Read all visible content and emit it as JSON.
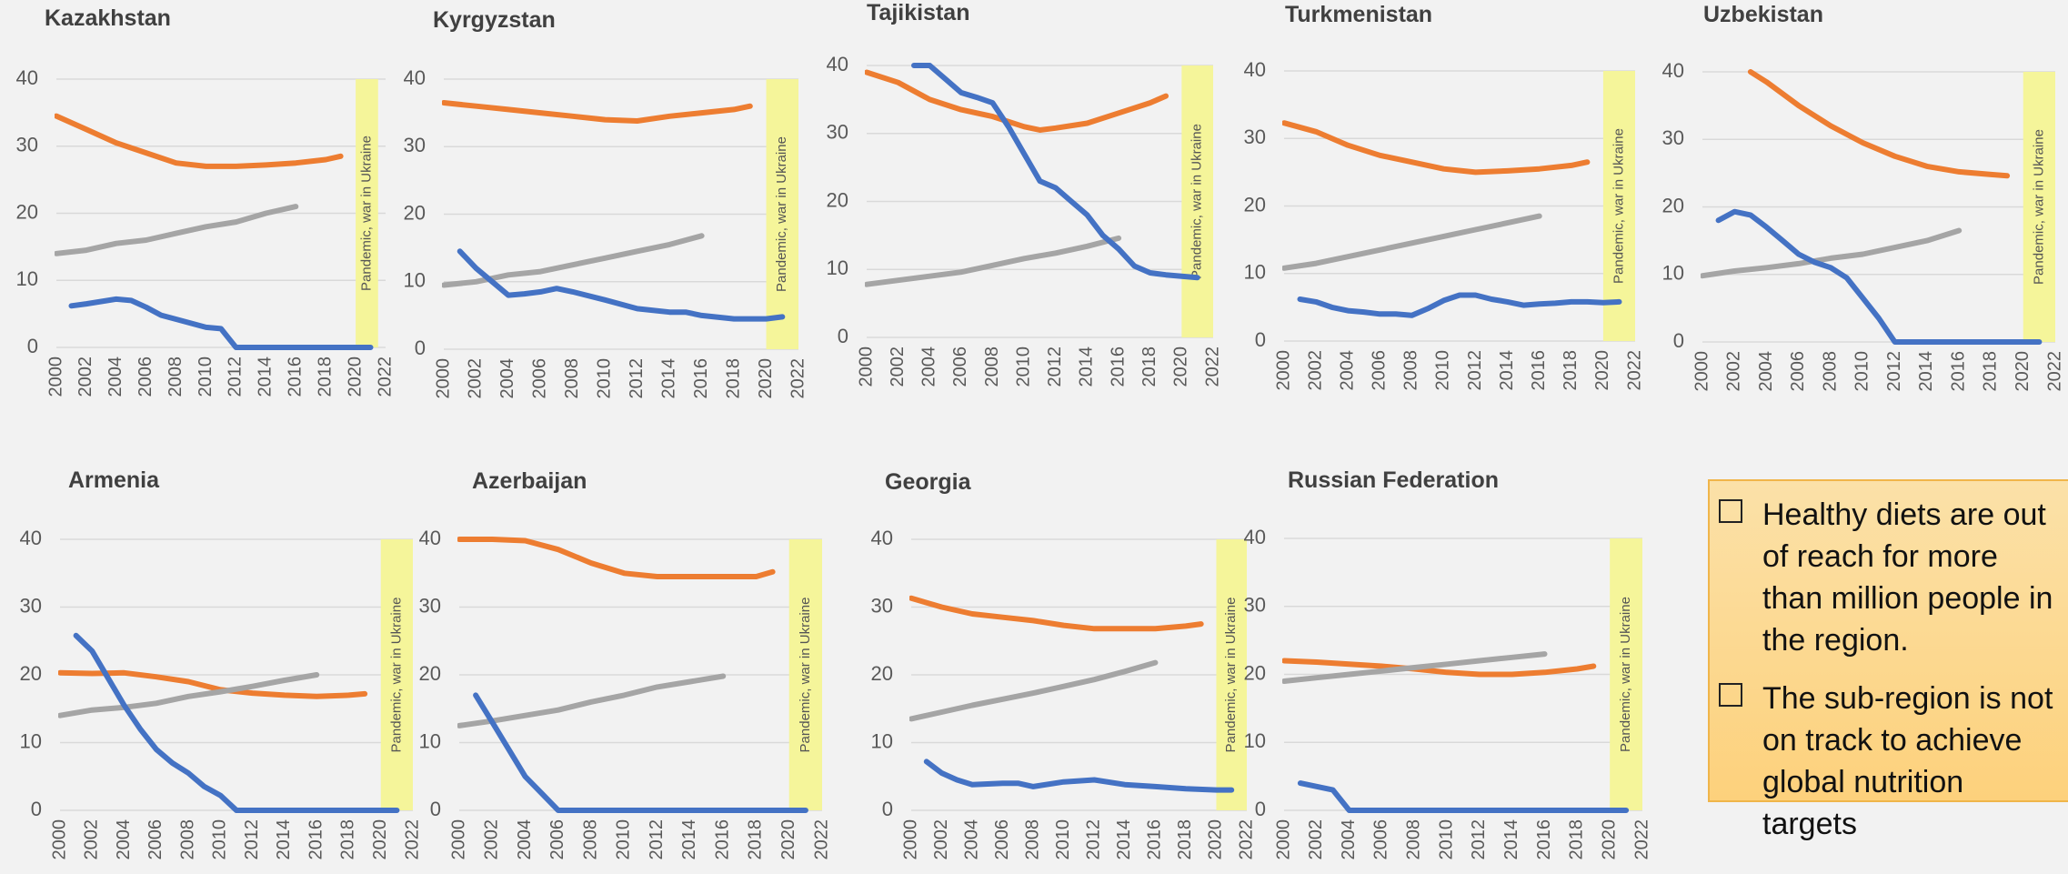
{
  "colors": {
    "blue": "#4472c4",
    "orange": "#ed7d31",
    "gray": "#a5a5a5",
    "band": "#f5f59a",
    "grid": "#d9d9d9"
  },
  "band_label": "Pandemic, war in Ukraine",
  "info_box": {
    "items": [
      "Healthy diets are out of reach for more than million people in the region.",
      "The sub-region is not on track to achieve global nutrition targets"
    ]
  },
  "chart_data": [
    {
      "type": "line",
      "title": "Kazakhstan",
      "ylim": [
        0,
        40
      ],
      "yticks": [
        "0",
        "10",
        "20",
        "30",
        "40"
      ],
      "xticks": [
        "2000",
        "2002",
        "2004",
        "2006",
        "2008",
        "2010",
        "2012",
        "2014",
        "2016",
        "2018",
        "2020",
        "2022"
      ],
      "band": [
        2020,
        2021.5
      ],
      "band_label": "Pandemic, war in Ukraine",
      "series": [
        {
          "color": "orange",
          "x": [
            2000,
            2002,
            2004,
            2006,
            2008,
            2010,
            2012,
            2014,
            2016,
            2018,
            2019
          ],
          "values": [
            34.5,
            32.5,
            30.5,
            29,
            27.5,
            27,
            27,
            27.2,
            27.5,
            28,
            28.5
          ]
        },
        {
          "color": "gray",
          "x": [
            2000,
            2002,
            2004,
            2006,
            2008,
            2010,
            2012,
            2014,
            2016
          ],
          "values": [
            14,
            14.5,
            15.5,
            16,
            17,
            18,
            18.7,
            20,
            21
          ]
        },
        {
          "color": "blue",
          "x": [
            2001,
            2002,
            2004,
            2005,
            2006,
            2007,
            2008,
            2010,
            2011,
            2012,
            2014,
            2016,
            2018,
            2020,
            2021
          ],
          "values": [
            6.2,
            6.5,
            7.2,
            7,
            6,
            4.8,
            4.2,
            3,
            2.8,
            0,
            0,
            0,
            0,
            0,
            0
          ]
        }
      ]
    },
    {
      "type": "line",
      "title": "Kyrgyzstan",
      "ylim": [
        0,
        40
      ],
      "yticks": [
        "0",
        "10",
        "20",
        "30",
        "40"
      ],
      "xticks": [
        "2000",
        "2002",
        "2004",
        "2006",
        "2008",
        "2010",
        "2012",
        "2014",
        "2016",
        "2018",
        "2020",
        "2022"
      ],
      "band": [
        2020,
        2022
      ],
      "band_label": "Pandemic, war in Ukraine",
      "series": [
        {
          "color": "orange",
          "x": [
            2000,
            2002,
            2004,
            2006,
            2008,
            2010,
            2012,
            2014,
            2016,
            2018,
            2019
          ],
          "values": [
            36.5,
            36,
            35.5,
            35,
            34.5,
            34,
            33.8,
            34.5,
            35,
            35.5,
            36
          ]
        },
        {
          "color": "gray",
          "x": [
            2000,
            2002,
            2004,
            2006,
            2008,
            2010,
            2012,
            2014,
            2016
          ],
          "values": [
            9.5,
            10,
            11,
            11.5,
            12.5,
            13.5,
            14.5,
            15.5,
            16.8
          ]
        },
        {
          "color": "blue",
          "x": [
            2001,
            2002,
            2004,
            2005,
            2006,
            2007,
            2008,
            2010,
            2012,
            2014,
            2015,
            2016,
            2018,
            2019,
            2020,
            2021
          ],
          "values": [
            14.5,
            12,
            8,
            8.2,
            8.5,
            9,
            8.5,
            7.3,
            6,
            5.5,
            5.5,
            5,
            4.5,
            4.5,
            4.5,
            4.8
          ]
        }
      ]
    },
    {
      "type": "line",
      "title": "Tajikistan",
      "ylim": [
        0,
        40
      ],
      "yticks": [
        "0",
        "10",
        "20",
        "30",
        "40"
      ],
      "xticks": [
        "2000",
        "2002",
        "2004",
        "2006",
        "2008",
        "2010",
        "2012",
        "2014",
        "2016",
        "2018",
        "2020",
        "2022"
      ],
      "band": [
        2020,
        2022
      ],
      "band_label": "Pandemic, war in Ukraine",
      "series": [
        {
          "color": "orange",
          "x": [
            2000,
            2002,
            2004,
            2006,
            2008,
            2010,
            2011,
            2012,
            2014,
            2016,
            2018,
            2019
          ],
          "values": [
            39,
            37.5,
            35,
            33.5,
            32.5,
            31,
            30.5,
            30.8,
            31.5,
            33,
            34.5,
            35.5
          ]
        },
        {
          "color": "gray",
          "x": [
            2000,
            2002,
            2004,
            2006,
            2008,
            2010,
            2012,
            2014,
            2016
          ],
          "values": [
            7.8,
            8.4,
            9,
            9.6,
            10.6,
            11.6,
            12.4,
            13.4,
            14.6
          ]
        },
        {
          "color": "blue",
          "x": [
            2003,
            2004,
            2005,
            2006,
            2007,
            2008,
            2009,
            2010,
            2011,
            2012,
            2013,
            2014,
            2015,
            2016,
            2017,
            2018,
            2019,
            2020,
            2021
          ],
          "values": [
            41,
            40,
            38,
            36,
            35.3,
            34.5,
            31,
            27,
            23,
            22,
            20,
            18,
            15,
            13,
            10.5,
            9.5,
            9.2,
            9,
            8.8
          ]
        }
      ]
    },
    {
      "type": "line",
      "title": "Turkmenistan",
      "ylim": [
        0,
        40
      ],
      "yticks": [
        "0",
        "10",
        "20",
        "30",
        "40"
      ],
      "xticks": [
        "2000",
        "2002",
        "2004",
        "2006",
        "2008",
        "2010",
        "2012",
        "2014",
        "2016",
        "2018",
        "2020",
        "2022"
      ],
      "band": [
        2020,
        2022
      ],
      "band_label": "Pandemic, war in Ukraine",
      "series": [
        {
          "color": "orange",
          "x": [
            2000,
            2002,
            2004,
            2006,
            2008,
            2010,
            2012,
            2014,
            2016,
            2018,
            2019
          ],
          "values": [
            32.3,
            31,
            29,
            27.5,
            26.5,
            25.5,
            25,
            25.2,
            25.5,
            26,
            26.5
          ]
        },
        {
          "color": "gray",
          "x": [
            2000,
            2002,
            2004,
            2006,
            2008,
            2010,
            2012,
            2014,
            2016
          ],
          "values": [
            10.8,
            11.5,
            12.5,
            13.5,
            14.5,
            15.5,
            16.5,
            17.5,
            18.5
          ]
        },
        {
          "color": "blue",
          "x": [
            2001,
            2002,
            2003,
            2004,
            2005,
            2006,
            2007,
            2008,
            2009,
            2010,
            2011,
            2012,
            2013,
            2014,
            2015,
            2016,
            2017,
            2018,
            2019,
            2020,
            2021
          ],
          "values": [
            6.2,
            5.8,
            5,
            4.5,
            4.3,
            4,
            4,
            3.8,
            4.8,
            6,
            6.8,
            6.8,
            6.2,
            5.8,
            5.3,
            5.5,
            5.6,
            5.8,
            5.8,
            5.7,
            5.8
          ]
        }
      ]
    },
    {
      "type": "line",
      "title": "Uzbekistan",
      "ylim": [
        0,
        40
      ],
      "yticks": [
        "0",
        "10",
        "20",
        "30",
        "40"
      ],
      "xticks": [
        "2000",
        "2002",
        "2004",
        "2006",
        "2008",
        "2010",
        "2012",
        "2014",
        "2016",
        "2018",
        "2020",
        "2022"
      ],
      "band": [
        2020,
        2022
      ],
      "band_label": "Pandemic, war in Ukraine",
      "series": [
        {
          "color": "orange",
          "x": [
            2003,
            2004,
            2006,
            2008,
            2010,
            2012,
            2014,
            2016,
            2018,
            2019
          ],
          "values": [
            40,
            38.5,
            35,
            32,
            29.5,
            27.5,
            26,
            25.2,
            24.8,
            24.6
          ]
        },
        {
          "color": "gray",
          "x": [
            2000,
            2002,
            2004,
            2006,
            2008,
            2010,
            2012,
            2014,
            2016
          ],
          "values": [
            9.8,
            10.5,
            11,
            11.6,
            12.4,
            13,
            14,
            15,
            16.5
          ]
        },
        {
          "color": "blue",
          "x": [
            2001,
            2002,
            2003,
            2004,
            2005,
            2006,
            2007,
            2008,
            2009,
            2010,
            2011,
            2012,
            2014,
            2016,
            2018,
            2020,
            2021
          ],
          "values": [
            18,
            19.3,
            18.8,
            17,
            15,
            13,
            11.8,
            11,
            9.5,
            6.5,
            3.5,
            0,
            0,
            0,
            0,
            0,
            0
          ]
        }
      ]
    },
    {
      "type": "line",
      "title": "Armenia",
      "ylim": [
        0,
        40
      ],
      "yticks": [
        "0",
        "10",
        "20",
        "30",
        "40"
      ],
      "xticks": [
        "2000",
        "2002",
        "2004",
        "2006",
        "2008",
        "2010",
        "2012",
        "2014",
        "2016",
        "2018",
        "2020",
        "2022"
      ],
      "band": [
        2020,
        2022
      ],
      "band_label": "Pandemic, war in Ukraine",
      "series": [
        {
          "color": "orange",
          "x": [
            2000,
            2002,
            2004,
            2006,
            2008,
            2010,
            2012,
            2014,
            2016,
            2018,
            2019
          ],
          "values": [
            20.3,
            20.2,
            20.3,
            19.7,
            19,
            17.8,
            17.3,
            17,
            16.8,
            17,
            17.2
          ]
        },
        {
          "color": "gray",
          "x": [
            2000,
            2002,
            2004,
            2006,
            2008,
            2010,
            2012,
            2014,
            2016
          ],
          "values": [
            14,
            14.8,
            15.2,
            15.8,
            16.8,
            17.5,
            18.3,
            19.2,
            20
          ]
        },
        {
          "color": "blue",
          "x": [
            2001,
            2002,
            2003,
            2004,
            2005,
            2006,
            2007,
            2008,
            2009,
            2010,
            2011,
            2012,
            2014,
            2016,
            2018,
            2020,
            2021
          ],
          "values": [
            25.8,
            23.5,
            19.5,
            15.5,
            12,
            9,
            7,
            5.5,
            3.5,
            2.2,
            0,
            0,
            0,
            0,
            0,
            0,
            0
          ]
        }
      ]
    },
    {
      "type": "line",
      "title": "Azerbaijan",
      "ylim": [
        0,
        40
      ],
      "yticks": [
        "0",
        "10",
        "20",
        "30",
        "40"
      ],
      "xticks": [
        "2000",
        "2002",
        "2004",
        "2006",
        "2008",
        "2010",
        "2012",
        "2014",
        "2016",
        "2018",
        "2020",
        "2022"
      ],
      "band": [
        2020,
        2022
      ],
      "band_label": "Pandemic, war in Ukraine",
      "series": [
        {
          "color": "orange",
          "x": [
            2000,
            2002,
            2004,
            2006,
            2008,
            2010,
            2012,
            2014,
            2016,
            2018,
            2019
          ],
          "values": [
            40,
            40,
            39.8,
            38.5,
            36.5,
            35,
            34.5,
            34.5,
            34.5,
            34.5,
            35.2
          ]
        },
        {
          "color": "gray",
          "x": [
            2000,
            2002,
            2004,
            2006,
            2008,
            2010,
            2012,
            2014,
            2016
          ],
          "values": [
            12.5,
            13.2,
            14,
            14.8,
            16,
            17,
            18.2,
            19,
            19.8
          ]
        },
        {
          "color": "blue",
          "x": [
            2001,
            2002,
            2003,
            2004,
            2005,
            2006,
            2007,
            2008,
            2010,
            2012,
            2014,
            2016,
            2018,
            2020,
            2021
          ],
          "values": [
            17,
            13,
            9,
            5,
            2.5,
            0,
            0,
            0,
            0,
            0,
            0,
            0,
            0,
            0,
            0
          ]
        }
      ]
    },
    {
      "type": "line",
      "title": "Georgia",
      "ylim": [
        0,
        40
      ],
      "yticks": [
        "0",
        "10",
        "20",
        "30",
        "40"
      ],
      "xticks": [
        "2000",
        "2002",
        "2004",
        "2006",
        "2008",
        "2010",
        "2012",
        "2014",
        "2016",
        "2018",
        "2020",
        "2022"
      ],
      "band": [
        2020,
        2022
      ],
      "band_label": "Pandemic, war in Ukraine",
      "series": [
        {
          "color": "orange",
          "x": [
            2000,
            2002,
            2004,
            2006,
            2008,
            2010,
            2012,
            2014,
            2016,
            2018,
            2019
          ],
          "values": [
            31.3,
            30,
            29,
            28.5,
            28,
            27.3,
            26.8,
            26.8,
            26.8,
            27.2,
            27.5
          ]
        },
        {
          "color": "gray",
          "x": [
            2000,
            2002,
            2004,
            2006,
            2008,
            2010,
            2012,
            2014,
            2016
          ],
          "values": [
            13.5,
            14.5,
            15.5,
            16.4,
            17.3,
            18.3,
            19.3,
            20.5,
            21.8
          ]
        },
        {
          "color": "blue",
          "x": [
            2001,
            2002,
            2003,
            2004,
            2006,
            2007,
            2008,
            2010,
            2012,
            2014,
            2016,
            2018,
            2020,
            2021
          ],
          "values": [
            7.2,
            5.5,
            4.5,
            3.8,
            4,
            4,
            3.5,
            4.2,
            4.5,
            3.8,
            3.5,
            3.2,
            3,
            3
          ]
        }
      ]
    },
    {
      "type": "line",
      "title": "Russian Federation",
      "ylim": [
        0,
        40
      ],
      "yticks": [
        "0",
        "10",
        "20",
        "30",
        "40"
      ],
      "xticks": [
        "2000",
        "2002",
        "2004",
        "2006",
        "2008",
        "2010",
        "2012",
        "2014",
        "2016",
        "2018",
        "2020",
        "2022"
      ],
      "band": [
        2020,
        2022
      ],
      "band_label": "Pandemic, war in Ukraine",
      "series": [
        {
          "color": "orange",
          "x": [
            2000,
            2002,
            2004,
            2006,
            2008,
            2010,
            2012,
            2014,
            2016,
            2018,
            2019
          ],
          "values": [
            22,
            21.8,
            21.5,
            21.2,
            20.8,
            20.3,
            20,
            20,
            20.3,
            20.8,
            21.2
          ]
        },
        {
          "color": "gray",
          "x": [
            2000,
            2002,
            2004,
            2006,
            2008,
            2010,
            2012,
            2014,
            2016
          ],
          "values": [
            19,
            19.5,
            20,
            20.5,
            21,
            21.5,
            22,
            22.5,
            23
          ]
        },
        {
          "color": "blue",
          "x": [
            2001,
            2002,
            2003,
            2004,
            2006,
            2008,
            2010,
            2012,
            2014,
            2016,
            2018,
            2020,
            2021
          ],
          "values": [
            4,
            3.5,
            3,
            0,
            0,
            0,
            0,
            0,
            0,
            0,
            0,
            0,
            0
          ]
        }
      ]
    }
  ]
}
